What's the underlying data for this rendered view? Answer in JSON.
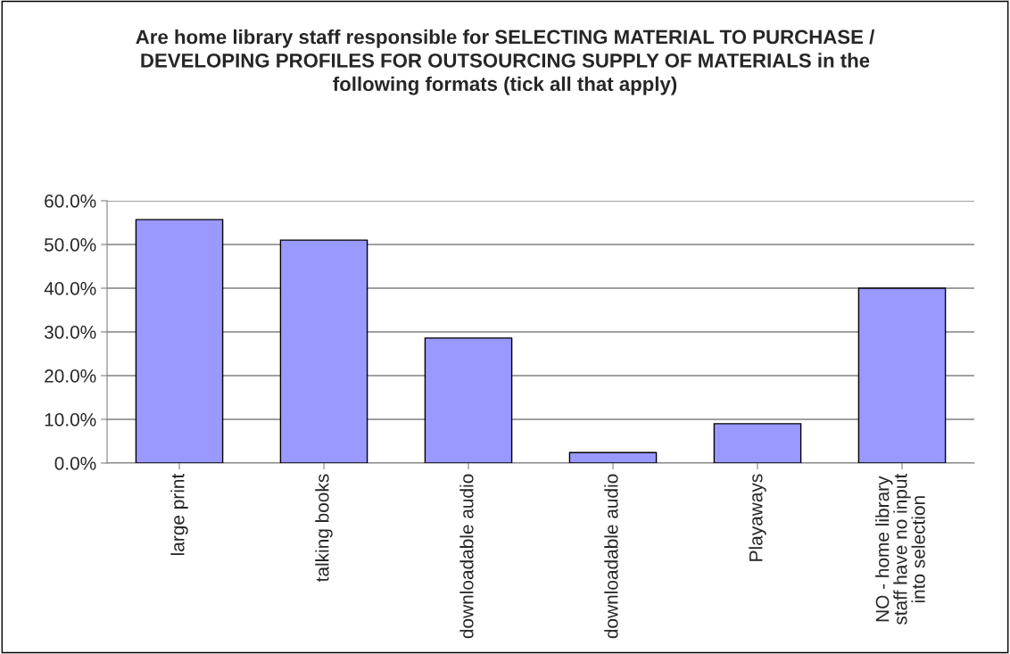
{
  "chart_data": {
    "type": "bar",
    "title": "Are home library staff responsible for SELECTING MATERIAL TO PURCHASE / DEVELOPING PROFILES FOR OUTSOURCING SUPPLY OF MATERIALS in the following formats (tick all that apply)",
    "categories": [
      "large print",
      "talking books",
      "downloadable audio",
      "downloadable audio",
      "Playaways",
      "NO - home library staff have no input into selection"
    ],
    "values": [
      55.7,
      51.0,
      28.6,
      2.4,
      9.0,
      40.0
    ],
    "color": "#9999ff",
    "ylim": [
      0,
      60
    ],
    "yticks": [
      {
        "value": 0,
        "label": "0.0%"
      },
      {
        "value": 10,
        "label": "10.0%"
      },
      {
        "value": 20,
        "label": "20.0%"
      },
      {
        "value": 30,
        "label": "30.0%"
      },
      {
        "value": 40,
        "label": "40.0%"
      },
      {
        "value": 50,
        "label": "50.0%"
      },
      {
        "value": 60,
        "label": "60.0%"
      }
    ],
    "grid": "y",
    "legend": false
  }
}
